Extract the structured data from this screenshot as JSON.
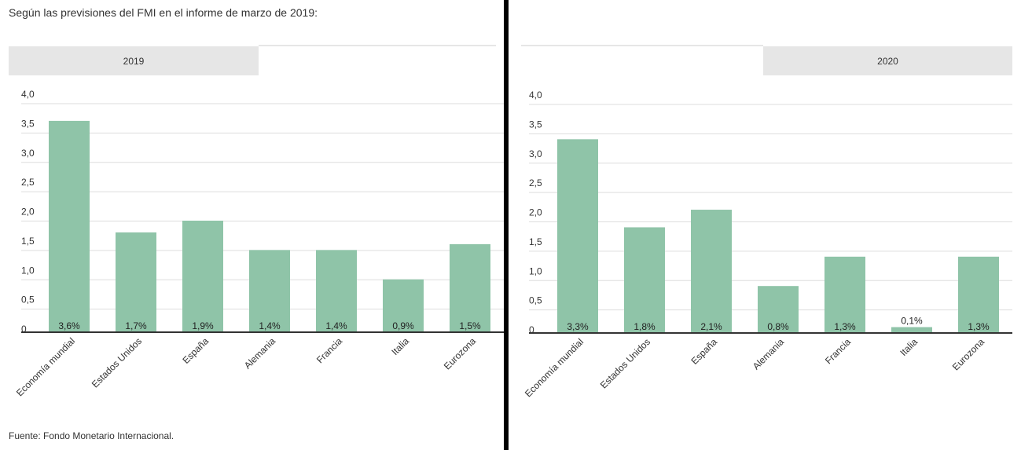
{
  "subtitle": "Según las previsiones del FMI en el informe de marzo de 2019:",
  "source": "Fuente: Fondo Monetario Internacional.",
  "tabs": [
    "2019",
    "2020"
  ],
  "colors": {
    "bar": "#8fc4a8",
    "tab_inactive": "#e6e6e6",
    "grid": "#dddddd",
    "axis": "#333333"
  },
  "chart_data": [
    {
      "type": "bar",
      "title": "2019",
      "categories": [
        "Economía mundial",
        "Estados Unidos",
        "España",
        "Alemania",
        "Francia",
        "Italia",
        "Eurozona"
      ],
      "values": [
        3.6,
        1.7,
        1.9,
        1.4,
        1.4,
        0.9,
        1.5
      ],
      "value_labels": [
        "3,6%",
        "1,7%",
        "1,9%",
        "1,4%",
        "1,4%",
        "0,9%",
        "1,5%"
      ],
      "y_ticks": [
        "0",
        "0,5",
        "1,0",
        "1,5",
        "2,0",
        "2,5",
        "3,0",
        "3,5",
        "4,0"
      ],
      "ylim": [
        0,
        4
      ],
      "grid": true
    },
    {
      "type": "bar",
      "title": "2020",
      "categories": [
        "Economía mundial",
        "Estados Unidos",
        "España",
        "Alemania",
        "Francia",
        "Italia",
        "Eurozona"
      ],
      "values": [
        3.3,
        1.8,
        2.1,
        0.8,
        1.3,
        0.1,
        1.3
      ],
      "value_labels": [
        "3,3%",
        "1,8%",
        "2,1%",
        "0,8%",
        "1,3%",
        "0,1%",
        "1,3%"
      ],
      "y_ticks": [
        "0",
        "0,5",
        "1,0",
        "1,5",
        "2,0",
        "2,5",
        "3,0",
        "3,5",
        "4,0"
      ],
      "ylim": [
        0,
        4
      ],
      "grid": true
    }
  ]
}
